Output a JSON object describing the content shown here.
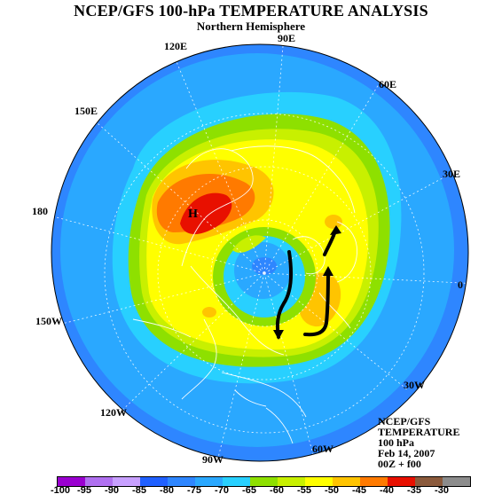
{
  "header": {
    "title": "NCEP/GFS 100-hPa TEMPERATURE ANALYSIS",
    "subtitle": "Northern Hemisphere"
  },
  "longitude_labels": {
    "l120e": "120E",
    "l90e": "90E",
    "l60e": "60E",
    "l150e": "150E",
    "l30e": "30E",
    "l180": "180",
    "l0": "0",
    "l150w": "150W",
    "l30w": "30W",
    "l120w": "120W",
    "l60w": "60W",
    "l90w": "90W"
  },
  "map_annotation": {
    "high_marker": "H"
  },
  "info_box": {
    "line1": "NCEP/GFS",
    "line2": "TEMPERATURE",
    "line3": "100 hPa",
    "date": "Feb 14, 2007",
    "time": "00Z + f00"
  },
  "colorbar": {
    "labels": [
      "-100",
      "-95",
      "-90",
      "-85",
      "-80",
      "-75",
      "-70",
      "-65",
      "-60",
      "-55",
      "-50",
      "-45",
      "-40",
      "-35",
      "-30"
    ],
    "colors": [
      "#9a00d0",
      "#b070f0",
      "#c8a0ff",
      "#2060ff",
      "#2e86ff",
      "#2aa8ff",
      "#28d0ff",
      "#8ee000",
      "#c8f000",
      "#ffff00",
      "#ffc400",
      "#ff7a00",
      "#e81000",
      "#8b5a3c",
      "#8c8c8c"
    ]
  }
}
